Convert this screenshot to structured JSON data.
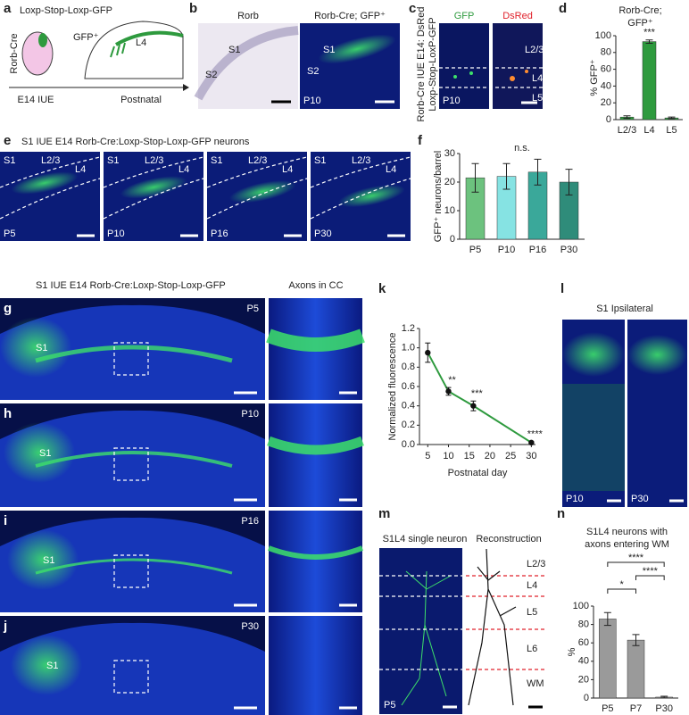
{
  "panel_a": {
    "letter": "a",
    "construct": "Loxp-Stop-Loxp-GFP",
    "gfp": "GFP⁺",
    "layer": "L4",
    "line": "Rorb-Cre",
    "time1": "E14 IUE",
    "time2": "Postnatal"
  },
  "panel_b": {
    "letter": "b",
    "left_title": "Rorb",
    "right_title": "Rorb-Cre; GFP⁺",
    "left_s1": "S1",
    "left_s2": "S2",
    "right_s1": "S1",
    "right_s2": "S2",
    "age": "P10"
  },
  "panel_c": {
    "letter": "c",
    "green": "GFP",
    "red": "DsRed",
    "side1": "Rorb-Cre IUE E14: DsRed",
    "side2": "Loxp-Stop-LoxP-GFP",
    "layers": [
      "L2/3",
      "L4",
      "L5"
    ],
    "age": "P10"
  },
  "panel_e": {
    "letter": "e",
    "title": "S1 IUE E14 Rorb-Cre:Loxp-Stop-Loxp-GFP neurons",
    "images": [
      {
        "age": "P5",
        "area": "S1",
        "layers": [
          "L2/3",
          "L4"
        ]
      },
      {
        "age": "P10",
        "area": "S1",
        "layers": [
          "L2/3",
          "L4"
        ]
      },
      {
        "age": "P16",
        "area": "S1",
        "layers": [
          "L2/3",
          "L4"
        ]
      },
      {
        "age": "P30",
        "area": "S1",
        "layers": [
          "L2/3",
          "L4"
        ]
      }
    ]
  },
  "panel_g": {
    "title": "S1 IUE E14 Rorb-Cre:Loxp-Stop-Loxp-GFP",
    "inset_title": "Axons in CC",
    "rows": [
      {
        "letter": "g",
        "age": "P5",
        "area": "S1"
      },
      {
        "letter": "h",
        "age": "P10",
        "area": "S1"
      },
      {
        "letter": "i",
        "age": "P16",
        "area": "S1"
      },
      {
        "letter": "j",
        "age": "P30",
        "area": "S1"
      }
    ]
  },
  "panel_l": {
    "letter": "l",
    "title": "S1 Ipsilateral",
    "ages": [
      "P10",
      "P30"
    ]
  },
  "panel_m": {
    "letter": "m",
    "left_title": "S1L4 single neuron",
    "right_title": "Reconstruction",
    "layers": [
      "L2/3",
      "L4",
      "L5",
      "L6",
      "WM"
    ],
    "age": "P5"
  },
  "letters": {
    "d": "d",
    "f": "f",
    "k": "k",
    "n": "n"
  },
  "chart_data": [
    {
      "type": "bar",
      "title": [
        "Rorb-Cre;",
        "GFP⁺"
      ],
      "ylabel": "% GFP⁺",
      "categories": [
        "L2/3",
        "L4",
        "L5"
      ],
      "values": [
        3,
        93,
        2
      ],
      "errors": [
        1.5,
        2,
        1
      ],
      "color": "#2e9a3e",
      "ylim": [
        0,
        100
      ],
      "yticks": [
        0,
        20,
        40,
        60,
        80,
        100
      ],
      "annotations": [
        "***"
      ]
    },
    {
      "type": "bar",
      "ylabel": "GFP⁺ neurons/barrel",
      "categories": [
        "P5",
        "P10",
        "P16",
        "P30"
      ],
      "values": [
        21.5,
        22,
        23.5,
        20
      ],
      "errors": [
        5,
        4.5,
        4.5,
        4.5
      ],
      "colors": [
        "#6cc27e",
        "#86e3e3",
        "#3aa89a",
        "#2f8c7a"
      ],
      "ylim": [
        0,
        30
      ],
      "yticks": [
        0,
        10,
        20,
        30
      ],
      "annotations": [
        "n.s."
      ]
    },
    {
      "type": "line",
      "xlabel": "Postnatal day",
      "ylabel": "Normalized fluorescence",
      "x": [
        5,
        10,
        16,
        30
      ],
      "values": [
        0.95,
        0.55,
        0.4,
        0.02
      ],
      "errors": [
        0.1,
        0.04,
        0.05,
        0.01
      ],
      "color": "#2e9a3e",
      "xlim": [
        3,
        31
      ],
      "xticks": [
        5,
        10,
        15,
        20,
        25,
        30
      ],
      "ylim": [
        0,
        1.2
      ],
      "yticks": [
        {
          "value": 0,
          "label": "0.0"
        },
        0.2,
        0.4,
        0.6,
        0.8,
        {
          "value": 1,
          "label": "1.0"
        },
        1.2
      ],
      "annotations": [
        "",
        "**",
        "***",
        "****"
      ]
    },
    {
      "type": "bar",
      "title": [
        "S1L4 neurons with",
        "axons entering WM"
      ],
      "ylabel": "%",
      "categories": [
        "P5",
        "P7",
        "P30"
      ],
      "values": [
        86,
        63,
        1
      ],
      "errors": [
        7,
        6,
        1
      ],
      "color": "#9a9a9a",
      "ylim": [
        0,
        100
      ],
      "yticks": [
        0,
        20,
        40,
        60,
        80,
        100
      ],
      "annotations": [
        "*",
        "****",
        "****"
      ]
    }
  ]
}
